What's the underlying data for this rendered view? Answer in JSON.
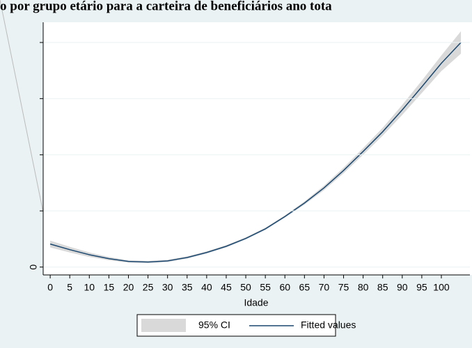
{
  "chart_data": {
    "type": "line",
    "title": "o por grupo etário para a carteira de beneficiários ano tota",
    "x_label": "Idade",
    "x": [
      0,
      5,
      10,
      15,
      20,
      25,
      30,
      35,
      40,
      45,
      50,
      55,
      60,
      65,
      70,
      75,
      80,
      85,
      90,
      95,
      100,
      105
    ],
    "series": [
      {
        "name": "95% CI",
        "color": "#d9d9d9",
        "lower": [
          0.35,
          0.26,
          0.18,
          0.12,
          0.08,
          0.07,
          0.09,
          0.15,
          0.24,
          0.35,
          0.49,
          0.66,
          0.88,
          1.11,
          1.37,
          1.67,
          2.0,
          2.34,
          2.71,
          3.1,
          3.49,
          3.8
        ],
        "upper": [
          0.47,
          0.36,
          0.26,
          0.18,
          0.12,
          0.11,
          0.13,
          0.19,
          0.28,
          0.39,
          0.53,
          0.7,
          0.92,
          1.17,
          1.45,
          1.77,
          2.12,
          2.48,
          2.89,
          3.32,
          3.77,
          4.2
        ]
      },
      {
        "name": "Fitted values",
        "color": "#1a476f",
        "values": [
          0.41,
          0.31,
          0.22,
          0.15,
          0.1,
          0.09,
          0.11,
          0.17,
          0.26,
          0.37,
          0.51,
          0.68,
          0.9,
          1.14,
          1.41,
          1.72,
          2.06,
          2.41,
          2.8,
          3.21,
          3.63,
          4.0
        ]
      }
    ],
    "xlim": [
      -1.8,
      107.3
    ],
    "ylim": [
      -0.14,
      4.36
    ],
    "xticks": [
      0,
      5,
      10,
      15,
      20,
      25,
      30,
      35,
      40,
      45,
      50,
      55,
      60,
      65,
      70,
      75,
      80,
      85,
      90,
      95,
      100
    ],
    "yticks": [
      0,
      {
        "value": 1,
        "label": null
      },
      {
        "value": 2,
        "label": null
      },
      {
        "value": 3,
        "label": null
      },
      {
        "value": 4,
        "label": null
      }
    ],
    "grid": true
  }
}
